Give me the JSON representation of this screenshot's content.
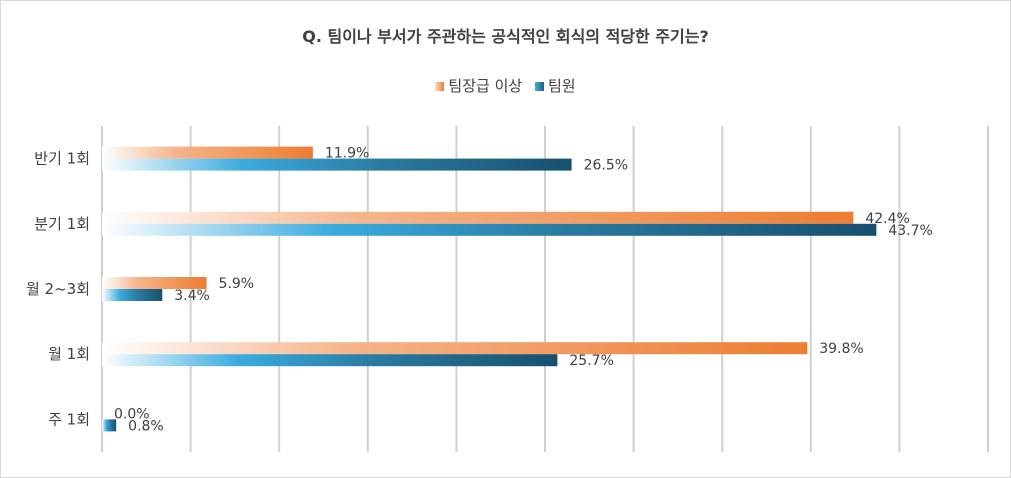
{
  "chart_data": {
    "type": "bar",
    "orientation": "horizontal",
    "title": "Q. 팀이나 부서가 주관하는 공식적인 회식의 적당한 주기는?",
    "categories": [
      "반기 1회",
      "분기 1회",
      "월 2~3회",
      "월 1회",
      "주 1회"
    ],
    "series": [
      {
        "name": "팀장급 이상",
        "values": [
          11.9,
          42.4,
          5.9,
          39.8,
          0.0
        ],
        "labels": [
          "11.9%",
          "42.4%",
          "5.9%",
          "39.8%",
          "0.0%"
        ],
        "color": "#ED7D31"
      },
      {
        "name": "팀원",
        "values": [
          26.5,
          43.7,
          3.4,
          25.7,
          0.8
        ],
        "labels": [
          "26.5%",
          "43.7%",
          "3.4%",
          "25.7%",
          "0.8%"
        ],
        "color": "#1F5F82"
      }
    ],
    "xlim": [
      0,
      50
    ],
    "grid": true,
    "legend_position": "top"
  }
}
